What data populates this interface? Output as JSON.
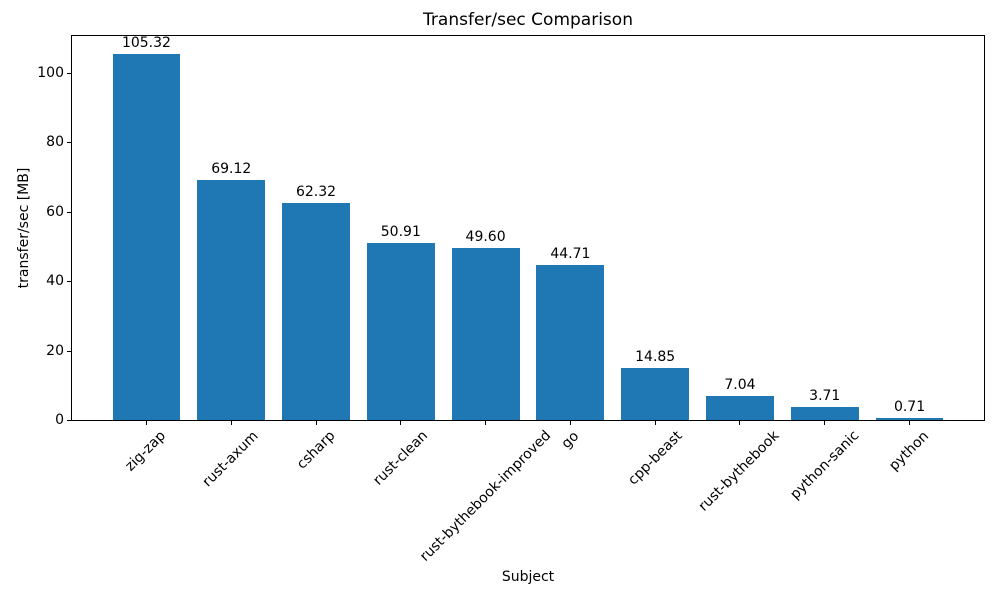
{
  "chart_data": {
    "type": "bar",
    "title": "Transfer/sec Comparison",
    "xlabel": "Subject",
    "ylabel": "transfer/sec [MB]",
    "categories": [
      "zig-zap",
      "rust-axum",
      "csharp",
      "rust-clean",
      "rust-bythebook-improved",
      "go",
      "cpp-beast",
      "rust-bythebook",
      "python-sanic",
      "python"
    ],
    "values": [
      105.32,
      69.12,
      62.32,
      50.91,
      49.6,
      44.71,
      14.85,
      7.04,
      3.71,
      0.71
    ],
    "value_labels": [
      "105.32",
      "69.12",
      "62.32",
      "50.91",
      "49.60",
      "44.71",
      "14.85",
      "7.04",
      "3.71",
      "0.71"
    ],
    "yticks": [
      0,
      20,
      40,
      60,
      80,
      100
    ],
    "ytick_labels": [
      "0",
      "20",
      "40",
      "60",
      "80",
      "100"
    ],
    "ylim": [
      0,
      111.1
    ],
    "bar_color": "#1f77b4",
    "axis_color": "#000000",
    "grid": false,
    "legend_position": "none"
  }
}
